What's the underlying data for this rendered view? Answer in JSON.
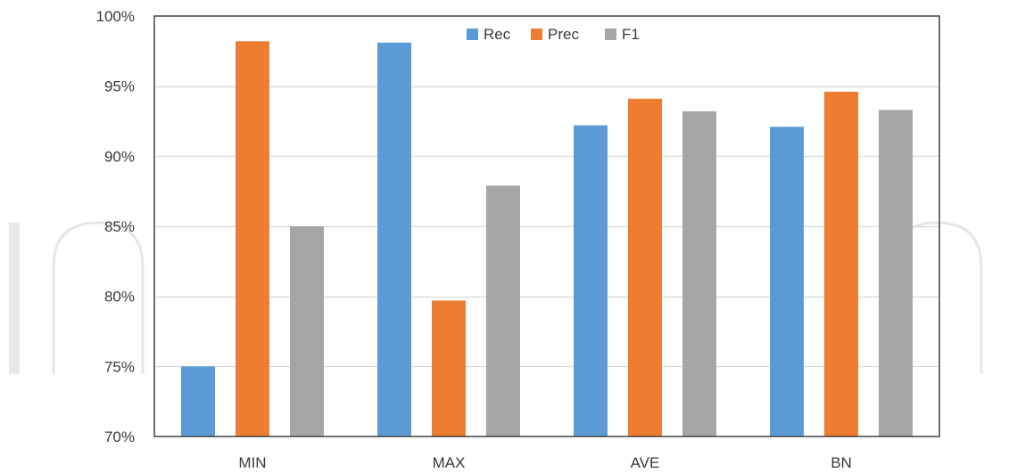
{
  "chart_data": {
    "type": "bar",
    "title": "",
    "xlabel": "",
    "ylabel": "",
    "categories": [
      "MIN",
      "MAX",
      "AVE",
      "BN"
    ],
    "series": [
      {
        "name": "Rec",
        "color": "#5b9bd5",
        "values": [
          0.75,
          0.981,
          0.922,
          0.921
        ]
      },
      {
        "name": "Prec",
        "color": "#ed7d31",
        "values": [
          0.982,
          0.797,
          0.941,
          0.946
        ]
      },
      {
        "name": "F1",
        "color": "#a5a5a5",
        "values": [
          0.85,
          0.879,
          0.932,
          0.933
        ]
      }
    ],
    "ylim": [
      0.7,
      1.0
    ],
    "yticks": [
      0.7,
      0.75,
      0.8,
      0.85,
      0.9,
      0.95,
      1.0
    ],
    "ytick_labels": [
      "70%",
      "75%",
      "80%",
      "85%",
      "90%",
      "95%",
      "100%"
    ],
    "grid": true,
    "legend_position": "top-center",
    "gridline_color": "#d9d9d9",
    "frame_color": "#404040"
  }
}
